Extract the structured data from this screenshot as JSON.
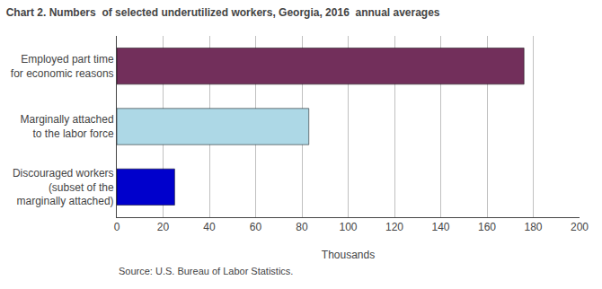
{
  "chart_data": {
    "type": "bar",
    "orientation": "horizontal",
    "title": "Chart 2. Numbers  of selected underutilized workers, Georgia, 2016  annual averages",
    "categories": [
      "Discouraged workers\n(subset of the\nmarginally attached)",
      "Marginally attached\nto the labor force",
      "Employed part time\nfor economic reasons"
    ],
    "values": [
      25,
      83,
      176
    ],
    "colors": [
      "#0000cc",
      "#add8e6",
      "#722f5b"
    ],
    "xlabel": "Thousands",
    "xlim": [
      0,
      200
    ],
    "xticks": [
      0,
      20,
      40,
      60,
      80,
      100,
      120,
      140,
      160,
      180,
      200
    ],
    "grid": true,
    "annotations": [
      "Source: U.S. Bureau of Labor Statistics."
    ]
  }
}
